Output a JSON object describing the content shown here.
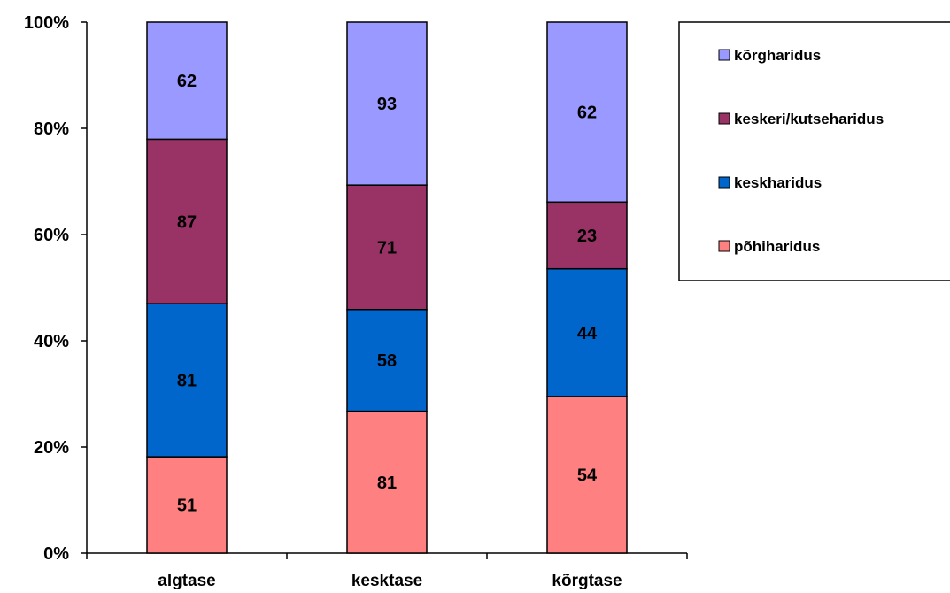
{
  "chart_data": {
    "type": "bar",
    "stacked": "percent",
    "categories": [
      "algtase",
      "kesktase",
      "kõrgtase"
    ],
    "series": [
      {
        "name": "põhiharidus",
        "values": [
          51,
          81,
          54
        ],
        "color": "#ff8080"
      },
      {
        "name": "keskharidus",
        "values": [
          81,
          58,
          44
        ],
        "color": "#0066cc"
      },
      {
        "name": "keskeri/kutseharidus",
        "values": [
          87,
          71,
          23
        ],
        "color": "#993366"
      },
      {
        "name": "kõrgharidus",
        "values": [
          62,
          93,
          62
        ],
        "color": "#9999ff"
      }
    ],
    "y_ticks": [
      "0%",
      "20%",
      "40%",
      "60%",
      "80%",
      "100%"
    ],
    "ylim": [
      0,
      100
    ],
    "grid": false,
    "legend_position": "right-top"
  }
}
